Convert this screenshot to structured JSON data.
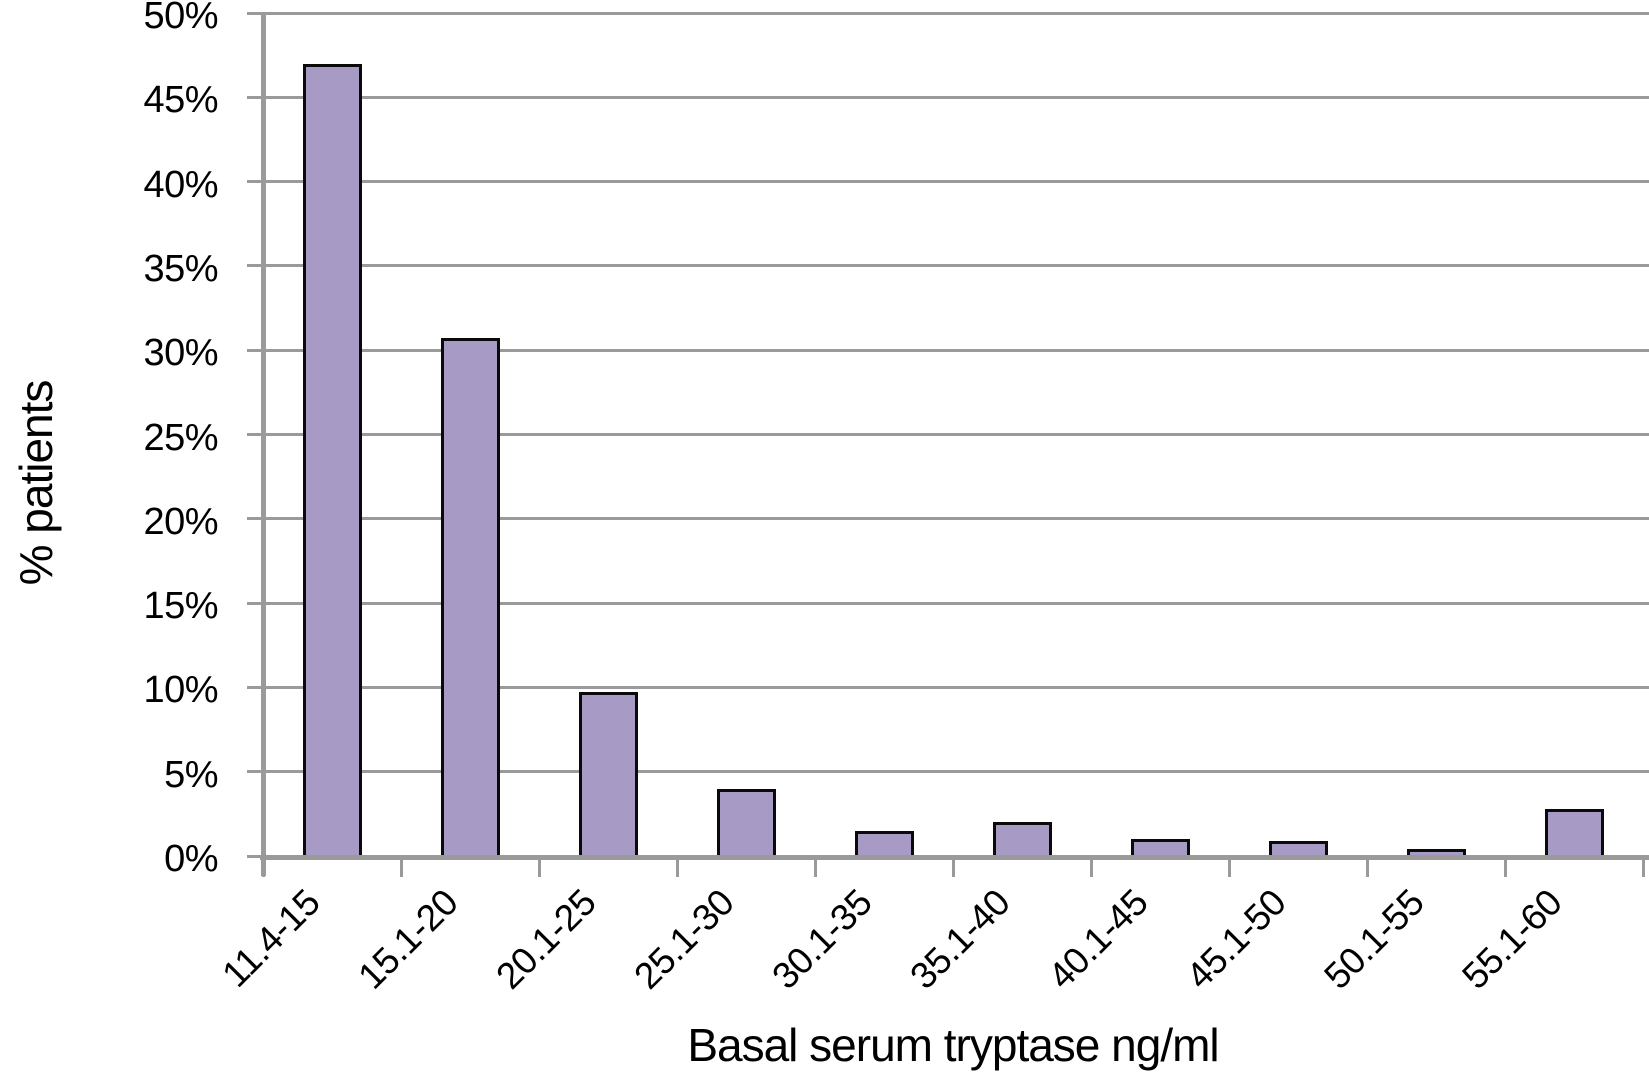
{
  "chart_data": {
    "type": "bar",
    "title": "",
    "xlabel": "Basal serum tryptase ng/ml",
    "ylabel": "% patients",
    "categories": [
      "11.4-15",
      "15.1-20",
      "20.1-25",
      "25.1-30",
      "30.1-35",
      "35.1-40",
      "40.1-45",
      "45.1-50",
      "50.1-55",
      "55.1-60"
    ],
    "values": [
      47,
      30.7,
      9.7,
      4,
      1.5,
      2,
      1,
      0.9,
      0.4,
      2.8
    ],
    "ylim": [
      0,
      50
    ],
    "ytick_step": 5,
    "ytick_labels": [
      "0%",
      "5%",
      "10%",
      "15%",
      "20%",
      "25%",
      "30%",
      "35%",
      "40%",
      "45%",
      "50%"
    ],
    "grid": true,
    "legend": "none",
    "colors": {
      "bar_fill": "#a79ac4",
      "bar_border": "#0a0a0a",
      "gridline": "#9a9a9a",
      "axis": "#9a9a9a",
      "text": "#000000",
      "background": "#ffffff"
    }
  }
}
